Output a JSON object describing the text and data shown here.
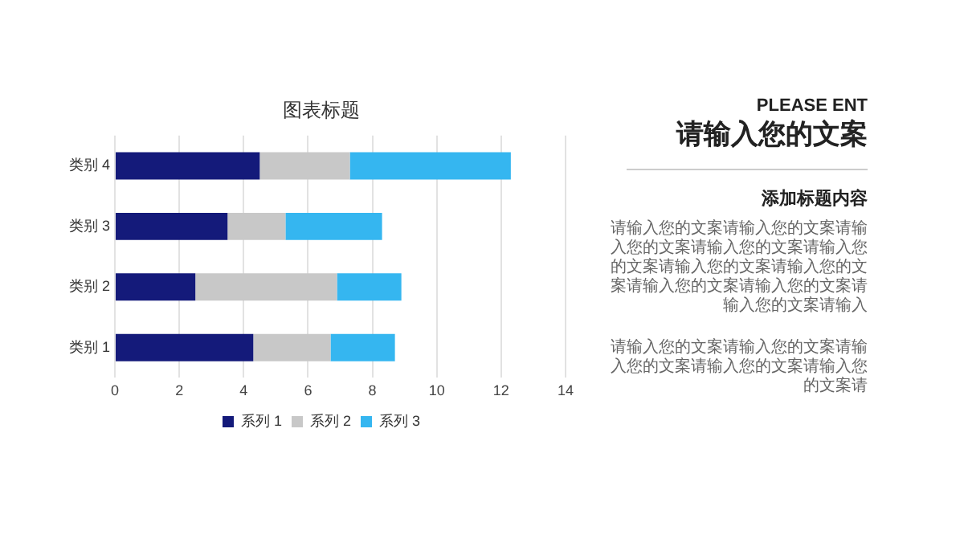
{
  "chart_data": {
    "type": "bar",
    "title": "图表标题",
    "orientation": "horizontal",
    "stacked": true,
    "categories": [
      "类别 4",
      "类别 3",
      "类别 2",
      "类别 1"
    ],
    "series": [
      {
        "name": "系列 1",
        "color": "#141a7a",
        "values": [
          4.5,
          3.5,
          2.5,
          4.3
        ]
      },
      {
        "name": "系列 2",
        "color": "#c8c8c8",
        "values": [
          2.8,
          1.8,
          4.4,
          2.4
        ]
      },
      {
        "name": "系列 3",
        "color": "#35b6f0",
        "values": [
          5,
          3,
          2,
          2
        ]
      }
    ],
    "xlim": [
      0,
      14
    ],
    "xticks": [
      0,
      2,
      4,
      6,
      8,
      10,
      12,
      14
    ],
    "grid": "x",
    "legend": "bottom",
    "annotations": [
      "PLEASE ENT",
      "请输入您的文案",
      "添加标题内容",
      "请输入您的文案请输入您的文案请输入您的文案请输入您的文案请输入您的文案请输入您的文案请输入您的文案请输入您的文案请输入您的文案请输入您的文案请输入",
      "请输入您的文案请输入您的文案请输入您的文案请输入您的文案请输入您的文案请"
    ]
  }
}
